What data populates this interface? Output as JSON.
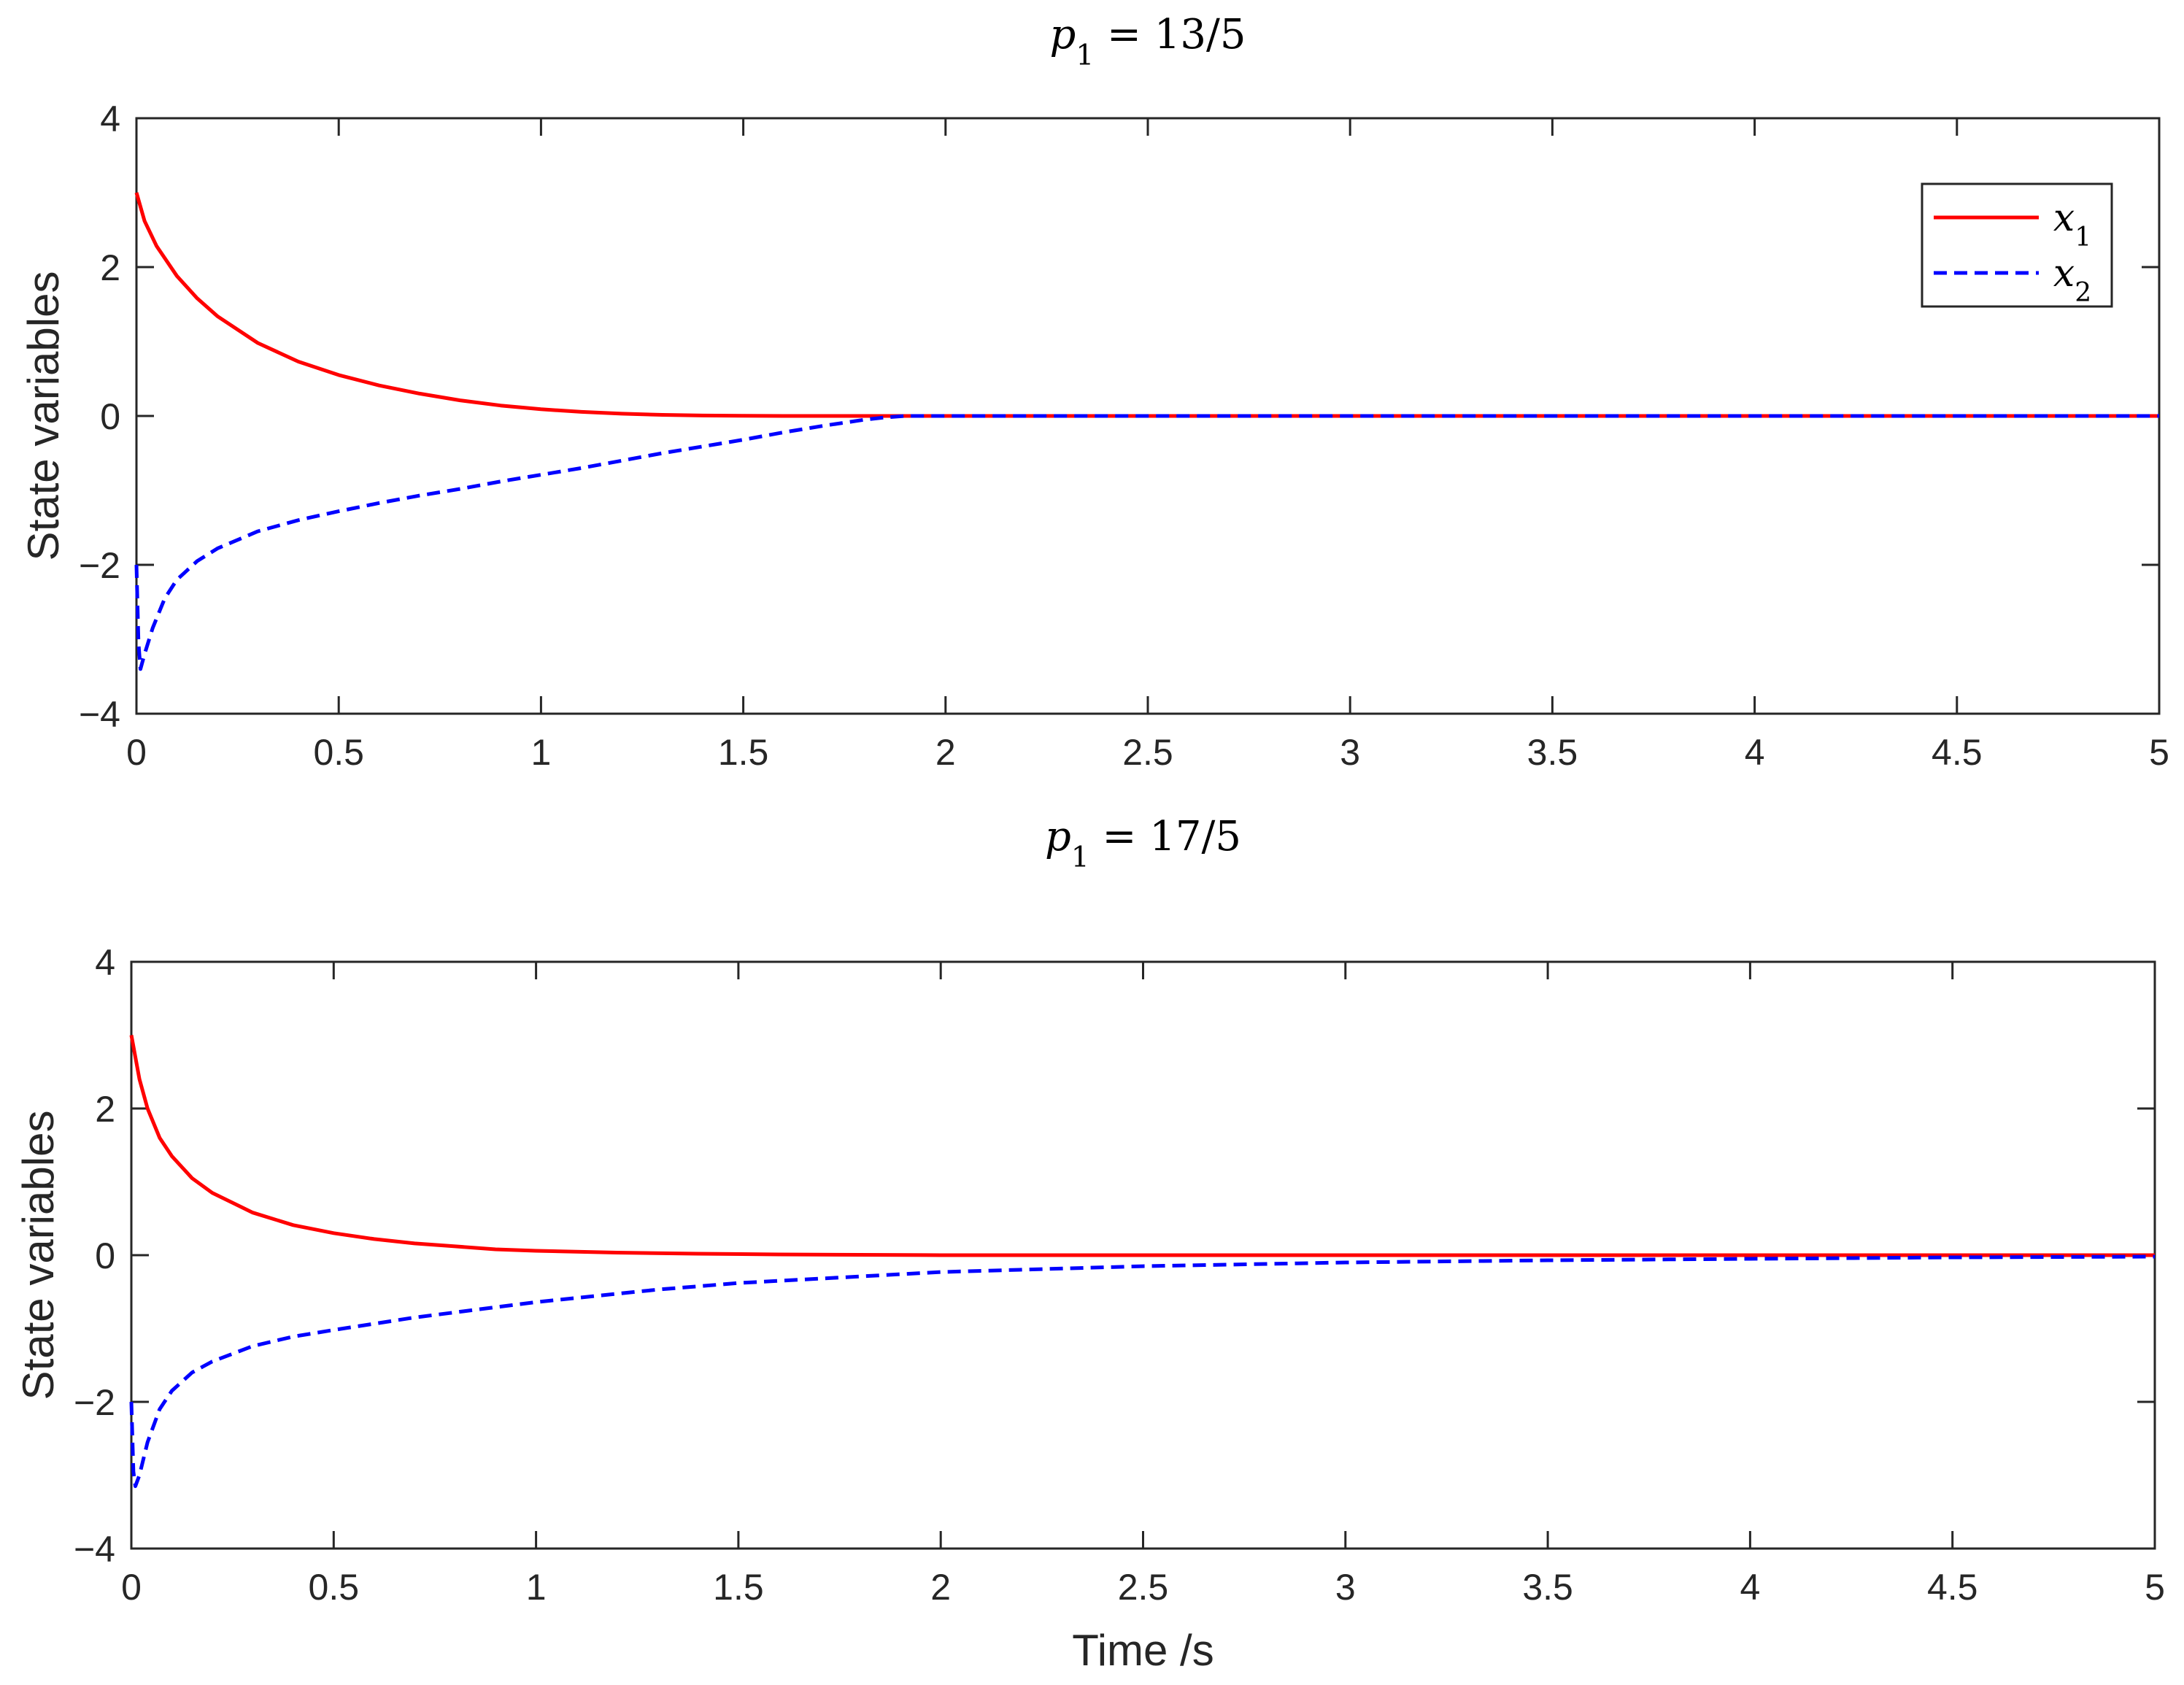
{
  "chart_data": [
    {
      "type": "line",
      "title": {
        "symbol": "p",
        "subscript": "1",
        "rest": " = 13/5"
      },
      "xlabel": "",
      "ylabel": "State variables",
      "xlim": [
        0,
        5
      ],
      "ylim": [
        -4,
        4
      ],
      "xticks": [
        "0",
        "0.5",
        "1",
        "1.5",
        "2",
        "2.5",
        "3",
        "3.5",
        "4",
        "4.5",
        "5"
      ],
      "yticks": [
        "−4",
        "−2",
        "0",
        "2",
        "4"
      ],
      "grid": false,
      "legend_position": "top-right",
      "series": [
        {
          "name": {
            "symbol": "x",
            "subscript": "1"
          },
          "color": "#ff0000",
          "style": "solid",
          "x": [
            0,
            0.02,
            0.05,
            0.1,
            0.15,
            0.2,
            0.3,
            0.4,
            0.5,
            0.6,
            0.7,
            0.8,
            0.9,
            1.0,
            1.1,
            1.2,
            1.3,
            1.4,
            1.5,
            1.6,
            1.7,
            1.8,
            1.9,
            5
          ],
          "y": [
            3.0,
            2.62,
            2.28,
            1.88,
            1.58,
            1.34,
            0.98,
            0.73,
            0.55,
            0.41,
            0.3,
            0.21,
            0.14,
            0.09,
            0.055,
            0.03,
            0.015,
            0.006,
            0.002,
            0.0,
            0.0,
            0.0,
            0.0,
            0.0
          ]
        },
        {
          "name": {
            "symbol": "x",
            "subscript": "2"
          },
          "color": "#0000ff",
          "style": "dashed",
          "x": [
            0,
            0.005,
            0.01,
            0.02,
            0.04,
            0.07,
            0.1,
            0.15,
            0.2,
            0.3,
            0.4,
            0.5,
            0.6,
            0.7,
            0.8,
            0.9,
            1.0,
            1.1,
            1.2,
            1.3,
            1.4,
            1.5,
            1.6,
            1.7,
            1.8,
            1.85,
            1.9,
            5
          ],
          "y": [
            -2.0,
            -3.05,
            -3.4,
            -3.2,
            -2.85,
            -2.45,
            -2.2,
            -1.95,
            -1.78,
            -1.55,
            -1.4,
            -1.28,
            -1.17,
            -1.07,
            -0.98,
            -0.88,
            -0.79,
            -0.7,
            -0.6,
            -0.5,
            -0.41,
            -0.32,
            -0.22,
            -0.13,
            -0.05,
            -0.02,
            0.0,
            0.0
          ]
        }
      ]
    },
    {
      "type": "line",
      "title": {
        "symbol": "p",
        "subscript": "1",
        "rest": " = 17/5"
      },
      "xlabel": "Time /s",
      "ylabel": "State variables",
      "xlim": [
        0,
        5
      ],
      "ylim": [
        -4,
        4
      ],
      "xticks": [
        "0",
        "0.5",
        "1",
        "1.5",
        "2",
        "2.5",
        "3",
        "3.5",
        "4",
        "4.5",
        "5"
      ],
      "yticks": [
        "−4",
        "−2",
        "0",
        "2",
        "4"
      ],
      "grid": false,
      "series": [
        {
          "color": "#ff0000",
          "style": "solid",
          "x": [
            0,
            0.02,
            0.04,
            0.07,
            0.1,
            0.15,
            0.2,
            0.3,
            0.4,
            0.5,
            0.6,
            0.7,
            0.8,
            0.9,
            1.0,
            1.2,
            1.4,
            1.6,
            1.8,
            2.0,
            2.5,
            3.0,
            5
          ],
          "y": [
            3.0,
            2.4,
            2.0,
            1.6,
            1.35,
            1.05,
            0.85,
            0.58,
            0.41,
            0.3,
            0.22,
            0.16,
            0.12,
            0.08,
            0.06,
            0.035,
            0.02,
            0.01,
            0.005,
            0.0,
            0.0,
            0.0,
            0.0
          ]
        },
        {
          "color": "#0000ff",
          "style": "dashed",
          "x": [
            0,
            0.005,
            0.01,
            0.02,
            0.04,
            0.07,
            0.1,
            0.15,
            0.2,
            0.3,
            0.4,
            0.5,
            0.7,
            1.0,
            1.3,
            1.5,
            2.0,
            2.5,
            3.0,
            3.5,
            4.0,
            4.5,
            5.0
          ],
          "y": [
            -2.0,
            -2.95,
            -3.15,
            -3.0,
            -2.55,
            -2.1,
            -1.85,
            -1.6,
            -1.45,
            -1.24,
            -1.11,
            -1.02,
            -0.85,
            -0.64,
            -0.47,
            -0.38,
            -0.23,
            -0.15,
            -0.1,
            -0.07,
            -0.05,
            -0.03,
            -0.02
          ]
        }
      ]
    }
  ]
}
